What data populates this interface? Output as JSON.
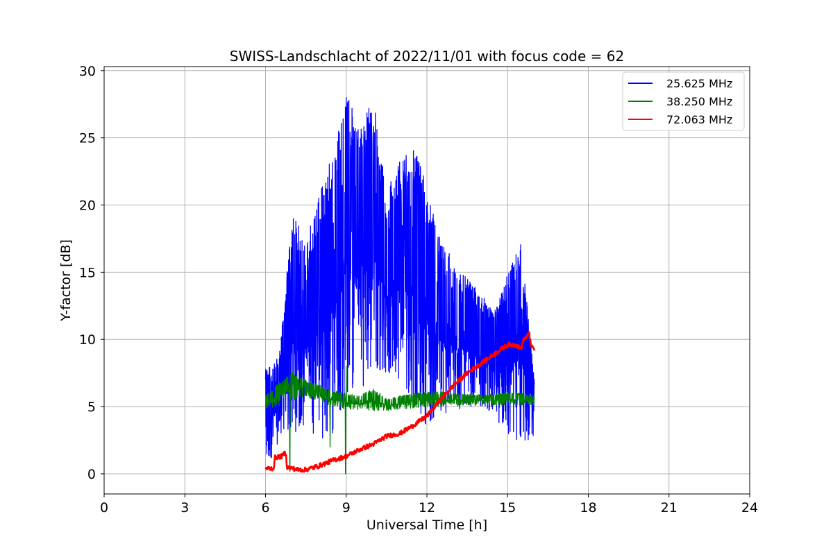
{
  "chart_data": {
    "type": "line",
    "title": "SWISS-Landschlacht of 2022/11/01 with focus code = 62",
    "xlabel": "Universal Time [h]",
    "ylabel": "Y-factor [dB]",
    "xlim": [
      0,
      24
    ],
    "ylim": [
      -1.5,
      30.3
    ],
    "xticks": [
      0,
      3,
      6,
      9,
      12,
      15,
      18,
      21,
      24
    ],
    "yticks": [
      0,
      5,
      10,
      15,
      20,
      25,
      30
    ],
    "grid": true,
    "legend_position": "top-right",
    "series": [
      {
        "name": "25.625 MHz",
        "color": "#0000ff",
        "profile": {
          "x": [
            6.0,
            6.5,
            7.0,
            7.5,
            8.0,
            8.5,
            9.0,
            9.5,
            10.0,
            10.5,
            11.0,
            11.5,
            12.0,
            12.5,
            13.0,
            13.5,
            14.0,
            14.5,
            15.0,
            15.5,
            16.0
          ],
          "low": [
            0.2,
            2.5,
            3.0,
            3.5,
            2.5,
            3.0,
            6.0,
            6.0,
            8.0,
            7.5,
            7.0,
            5.5,
            3.5,
            4.5,
            4.5,
            5.0,
            5.0,
            4.5,
            2.5,
            2.5,
            2.5
          ],
          "high": [
            7.8,
            8.7,
            19.3,
            17.5,
            20.7,
            24.0,
            28.7,
            25.5,
            28.2,
            21.0,
            23.5,
            24.5,
            21.5,
            17.5,
            15.8,
            14.5,
            13.5,
            12.0,
            15.0,
            17.2,
            7.0
          ]
        }
      },
      {
        "name": "38.250 MHz",
        "color": "#008000",
        "profile": {
          "x": [
            6.0,
            6.5,
            7.0,
            7.5,
            8.0,
            8.5,
            9.0,
            9.5,
            10.0,
            10.5,
            11.0,
            11.5,
            12.0,
            12.5,
            13.0,
            13.5,
            14.0,
            14.5,
            15.0,
            15.5,
            16.0
          ],
          "low": [
            4.8,
            5.0,
            5.5,
            5.7,
            5.3,
            5.0,
            4.8,
            4.7,
            4.7,
            4.7,
            4.8,
            4.9,
            5.0,
            5.0,
            5.1,
            5.1,
            5.1,
            5.1,
            5.1,
            5.1,
            5.1
          ],
          "high": [
            5.8,
            6.8,
            7.6,
            7.0,
            6.6,
            6.2,
            6.0,
            5.8,
            6.4,
            5.6,
            5.8,
            6.0,
            6.1,
            6.1,
            6.0,
            5.9,
            5.9,
            5.9,
            6.1,
            6.0,
            5.8
          ]
        },
        "spikes": [
          [
            6.9,
            0.2
          ],
          [
            8.4,
            2.0
          ],
          [
            8.98,
            0.0
          ],
          [
            9.0,
            8.0
          ]
        ]
      },
      {
        "name": "72.063 MHz",
        "color": "#ff0000",
        "points": [
          [
            6.0,
            0.4
          ],
          [
            6.3,
            0.4
          ],
          [
            6.35,
            1.2
          ],
          [
            6.6,
            1.3
          ],
          [
            6.75,
            1.6
          ],
          [
            6.8,
            0.5
          ],
          [
            7.2,
            0.3
          ],
          [
            7.5,
            0.3
          ],
          [
            8.0,
            0.6
          ],
          [
            8.5,
            1.0
          ],
          [
            9.0,
            1.3
          ],
          [
            9.5,
            1.8
          ],
          [
            10.0,
            2.2
          ],
          [
            10.5,
            2.8
          ],
          [
            11.0,
            3.0
          ],
          [
            11.5,
            3.6
          ],
          [
            12.0,
            4.3
          ],
          [
            12.5,
            5.5
          ],
          [
            13.0,
            6.6
          ],
          [
            13.5,
            7.5
          ],
          [
            14.0,
            8.2
          ],
          [
            14.5,
            8.9
          ],
          [
            15.0,
            9.6
          ],
          [
            15.3,
            9.6
          ],
          [
            15.5,
            9.3
          ],
          [
            15.6,
            10.0
          ],
          [
            15.8,
            10.4
          ],
          [
            15.9,
            9.4
          ],
          [
            16.0,
            9.3
          ]
        ]
      }
    ]
  }
}
